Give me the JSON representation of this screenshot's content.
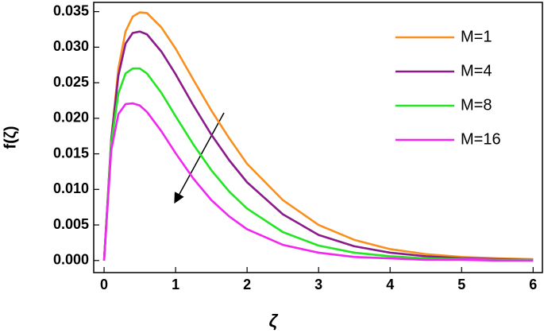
{
  "chart_data": {
    "type": "line",
    "x_label": "ζ",
    "y_label": "f(ζ)",
    "x": [
      0,
      0.1,
      0.2,
      0.3,
      0.4,
      0.5,
      0.6,
      0.8,
      1,
      1.25,
      1.5,
      1.75,
      2,
      2.5,
      3,
      3.5,
      4,
      4.5,
      5,
      5.5,
      6
    ],
    "series": [
      {
        "name": "M=1",
        "color": "#f7901e",
        "values": [
          0,
          0.017,
          0.027,
          0.0322,
          0.0343,
          0.0349,
          0.0348,
          0.0328,
          0.0298,
          0.0254,
          0.0211,
          0.0172,
          0.0136,
          0.0085,
          0.005,
          0.0029,
          0.0016,
          0.0009,
          0.0005,
          0.0003,
          0.0002
        ]
      },
      {
        "name": "M=4",
        "color": "#8b1a8b",
        "values": [
          0,
          0.017,
          0.026,
          0.0305,
          0.032,
          0.0322,
          0.0318,
          0.0294,
          0.0262,
          0.0218,
          0.0177,
          0.0141,
          0.011,
          0.0065,
          0.0036,
          0.002,
          0.0011,
          0.0006,
          0.0003,
          0.0002,
          0.0001
        ]
      },
      {
        "name": "M=8",
        "color": "#22e622",
        "values": [
          0,
          0.0165,
          0.0235,
          0.0263,
          0.027,
          0.027,
          0.0263,
          0.0236,
          0.0203,
          0.0163,
          0.0127,
          0.0097,
          0.0073,
          0.004,
          0.0021,
          0.0011,
          0.0006,
          0.0003,
          0.0002,
          0.0001,
          0.0001
        ]
      },
      {
        "name": "M=16",
        "color": "#f227f2",
        "values": [
          0,
          0.0155,
          0.0206,
          0.022,
          0.0221,
          0.0218,
          0.0209,
          0.0182,
          0.0151,
          0.0115,
          0.0085,
          0.0062,
          0.0044,
          0.0022,
          0.0011,
          0.0005,
          0.0003,
          0.0001,
          0.0001,
          0,
          0
        ]
      }
    ],
    "xlim": [
      -0.145,
      6.13
    ],
    "ylim": [
      -0.0017,
      0.0363
    ],
    "xticks": [
      0,
      1,
      2,
      3,
      4,
      5,
      6
    ],
    "yticks": [
      {
        "value": 0,
        "label": "0.000"
      },
      {
        "value": 0.005,
        "label": "0.005"
      },
      {
        "value": 0.01,
        "label": "0.010"
      },
      {
        "value": 0.015,
        "label": "0.015"
      },
      {
        "value": 0.02,
        "label": "0.020"
      },
      {
        "value": 0.025,
        "label": "0.025"
      },
      {
        "value": 0.03,
        "label": "0.030"
      },
      {
        "value": 0.035,
        "label": "0.035"
      }
    ],
    "legend": "upper right"
  }
}
